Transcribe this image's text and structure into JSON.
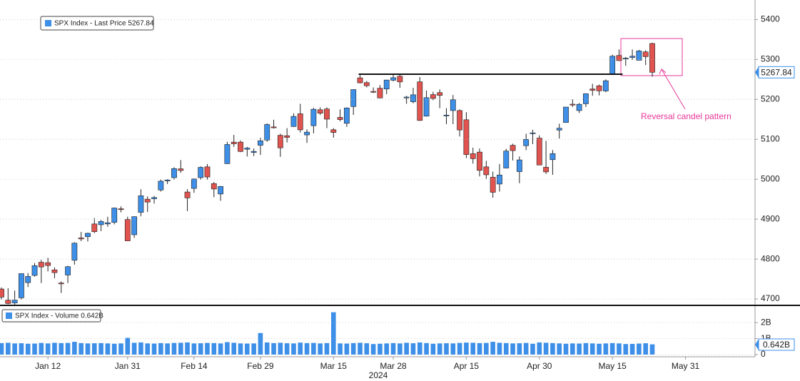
{
  "chart_data": [
    {
      "type": "candlestick",
      "legend": "SPX Index - Last Price 5267.84",
      "up_color": "#3d8fe8",
      "down_color": "#e0534f",
      "ylim": [
        4684,
        5440
      ],
      "yticks": [
        4700,
        4800,
        4900,
        5000,
        5100,
        5200,
        5300,
        5400
      ],
      "grid": true,
      "resistance": 5263,
      "annotation": "Reversal candel pattern",
      "open": [
        4725,
        4697,
        4690,
        4703,
        4741,
        4759,
        4792,
        4791,
        4773,
        4740,
        4760,
        4797,
        4853,
        4856,
        4888,
        4886,
        4888,
        4892,
        4926,
        4899,
        4861,
        4917,
        4950,
        4951,
        4973,
        4996,
        5004,
        5026,
        4968,
        4977,
        5004,
        5031,
        4989,
        4963,
        5039,
        5093,
        5093,
        5075,
        5067,
        5085,
        5098,
        5131,
        5110,
        5109,
        5132,
        5164,
        5111,
        5134,
        5174,
        5176,
        5124,
        5155,
        5140,
        5182,
        5254,
        5242,
        5220,
        5228,
        5226,
        5248,
        5258,
        5204,
        5194,
        5244,
        5158,
        5212,
        5217,
        5160,
        5172,
        5172,
        5149,
        5064,
        5068,
        5031,
        5005,
        4988,
        5028,
        5085,
        5019,
        5084,
        5114,
        5103,
        5030,
        5049,
        5123,
        5142,
        5188,
        5172,
        5189,
        5226,
        5234,
        5221,
        5264,
        5310,
        5303,
        5305,
        5298,
        5319,
        5340,
        null,
        null,
        null,
        null,
        null,
        null,
        null,
        null,
        null,
        null,
        null
      ],
      "high": [
        4729,
        4727,
        4721,
        4764,
        4765,
        4790,
        4798,
        4803,
        4779,
        4744,
        4783,
        4842,
        4868,
        4866,
        4903,
        4898,
        4906,
        4929,
        4932,
        4906,
        4907,
        4975,
        4957,
        4958,
        4999,
        5000,
        5030,
        5048,
        4975,
        5002,
        5032,
        5038,
        4993,
        4983,
        5094,
        5111,
        5097,
        5081,
        5077,
        5104,
        5140,
        5149,
        5114,
        5128,
        5165,
        5189,
        5125,
        5179,
        5180,
        5180,
        5128,
        5175,
        5180,
        5225,
        5261,
        5246,
        5230,
        5236,
        5249,
        5264,
        5263,
        5209,
        5229,
        5256,
        5222,
        5219,
        5225,
        5178,
        5211,
        5175,
        5168,
        5079,
        5077,
        5046,
        5019,
        5038,
        5076,
        5089,
        5057,
        5114,
        5124,
        5110,
        5096,
        5073,
        5139,
        5181,
        5200,
        5191,
        5215,
        5239,
        5237,
        5250,
        5312,
        5325,
        5306,
        5325,
        5324,
        5323,
        5342,
        null,
        null,
        null,
        null,
        null,
        null,
        null,
        null,
        null,
        null,
        null
      ],
      "low": [
        4699,
        4687,
        4682,
        4699,
        4730,
        4756,
        4740,
        4769,
        4752,
        4715,
        4740,
        4786,
        4845,
        4844,
        4865,
        4870,
        4881,
        4887,
        4917,
        4845,
        4853,
        4907,
        4918,
        4939,
        4969,
        4988,
        4999,
        5016,
        4920,
        4966,
        4999,
        4999,
        4955,
        4946,
        5038,
        5081,
        5068,
        5057,
        5058,
        5061,
        5094,
        5127,
        5056,
        5092,
        5131,
        5117,
        5091,
        5115,
        5161,
        5128,
        5104,
        5145,
        5131,
        5161,
        5240,
        5230,
        5216,
        5203,
        5213,
        5245,
        5229,
        5189,
        5190,
        5146,
        5157,
        5198,
        5178,
        5138,
        5138,
        5107,
        5053,
        5039,
        5007,
        5001,
        4954,
        4969,
        5027,
        5047,
        4990,
        5073,
        5088,
        5035,
        5013,
        5011,
        5102,
        5142,
        5181,
        5166,
        5181,
        5209,
        5210,
        5218,
        5263,
        5296,
        5284,
        5299,
        5298,
        5286,
        5257,
        null,
        null,
        null,
        null,
        null,
        null,
        null,
        null,
        null,
        null,
        null
      ],
      "close": [
        4704.81,
        4688.68,
        4697.24,
        4763.54,
        4756.5,
        4783.45,
        4780.24,
        4783.83,
        4765.98,
        4739.21,
        4780.94,
        4839.81,
        4850.43,
        4864.6,
        4868.55,
        4894.16,
        4890.97,
        4927.93,
        4924.97,
        4845.65,
        4906.19,
        4958.61,
        4942.81,
        4954.23,
        4995.06,
        4997.91,
        5026.61,
        5021.84,
        4953.17,
        5000.62,
        5029.73,
        5005.57,
        4975.51,
        4981.8,
        5087.03,
        5088.8,
        5069.53,
        5078.18,
        5069.76,
        5096.27,
        5137.08,
        5130.95,
        5078.65,
        5104.76,
        5157.36,
        5123.69,
        5117.94,
        5175.27,
        5165.31,
        5150.48,
        5117.09,
        5149.42,
        5178.51,
        5224.62,
        5241.53,
        5234.18,
        5218.19,
        5203.58,
        5248.49,
        5254.35,
        5243.77,
        5205.81,
        5211.49,
        5147.21,
        5204.34,
        5202.39,
        5209.91,
        5160.64,
        5199.06,
        5123.41,
        5061.82,
        5051.41,
        5022.21,
        5011.12,
        4967.23,
        5010.6,
        5070.55,
        5071.63,
        5048.42,
        5099.96,
        5116.17,
        5035.69,
        5018.39,
        5064.2,
        5127.79,
        5180.74,
        5187.7,
        5187.67,
        5214.08,
        5222.68,
        5221.42,
        5246.68,
        5308.15,
        5297.1,
        5303.27,
        5308.13,
        5321.41,
        5307.01,
        5267.84,
        null,
        null,
        null,
        null,
        null,
        null,
        null,
        null,
        null,
        null,
        null
      ]
    },
    {
      "type": "bar",
      "legend": "SPX Index - Volume 0.642B",
      "color": "#3d8fe8",
      "ylim": [
        0,
        2.9
      ],
      "yticks": [
        0,
        {
          "value": 1,
          "label": "1B"
        },
        {
          "value": 2,
          "label": "2B"
        }
      ],
      "grid": true,
      "last_label": "0.642B",
      "year_label": "2024",
      "categories": [
        null,
        null,
        null,
        null,
        null,
        null,
        null,
        "Jan 12",
        null,
        null,
        null,
        null,
        null,
        null,
        null,
        null,
        null,
        null,
        null,
        "Jan 31",
        null,
        null,
        null,
        null,
        null,
        null,
        null,
        null,
        null,
        "Feb 14",
        null,
        null,
        null,
        null,
        null,
        null,
        null,
        null,
        null,
        "Feb 29",
        null,
        null,
        null,
        null,
        null,
        null,
        null,
        null,
        null,
        null,
        "Mar 15",
        null,
        null,
        null,
        null,
        null,
        null,
        null,
        null,
        "Mar 28",
        null,
        null,
        null,
        null,
        null,
        null,
        null,
        null,
        null,
        null,
        "Apr 15",
        null,
        null,
        null,
        null,
        null,
        null,
        null,
        null,
        null,
        null,
        "Apr 30",
        null,
        null,
        null,
        null,
        null,
        null,
        null,
        null,
        null,
        null,
        "May 15",
        null,
        null,
        null,
        null,
        null,
        null,
        null,
        null,
        null,
        null,
        "May 31",
        null,
        null,
        null,
        null,
        null,
        null
      ],
      "values": [
        0.72,
        0.74,
        0.7,
        0.71,
        0.68,
        0.69,
        0.73,
        0.7,
        0.74,
        0.72,
        0.73,
        0.8,
        0.72,
        0.7,
        0.71,
        0.72,
        0.7,
        0.68,
        0.7,
        1.05,
        0.74,
        0.76,
        0.7,
        0.69,
        0.72,
        0.7,
        0.73,
        0.74,
        0.76,
        0.7,
        0.71,
        0.73,
        0.72,
        0.7,
        0.78,
        0.74,
        0.7,
        0.69,
        0.7,
        1.35,
        0.76,
        0.72,
        0.74,
        0.71,
        0.7,
        0.75,
        0.72,
        0.73,
        0.7,
        0.72,
        2.65,
        0.7,
        0.69,
        0.72,
        0.74,
        0.71,
        0.66,
        0.68,
        0.7,
        0.72,
        0.7,
        0.74,
        0.71,
        0.76,
        0.72,
        0.68,
        0.7,
        0.71,
        0.7,
        0.73,
        0.75,
        0.74,
        0.72,
        0.73,
        0.8,
        0.74,
        0.72,
        0.7,
        0.71,
        0.73,
        0.68,
        0.76,
        0.74,
        0.72,
        0.7,
        0.68,
        0.7,
        0.69,
        0.72,
        0.7,
        0.68,
        0.7,
        0.72,
        0.7,
        0.66,
        0.67,
        0.69,
        0.71,
        0.642,
        null,
        null,
        null,
        null,
        null,
        null,
        null,
        null,
        null,
        null,
        null
      ]
    }
  ]
}
